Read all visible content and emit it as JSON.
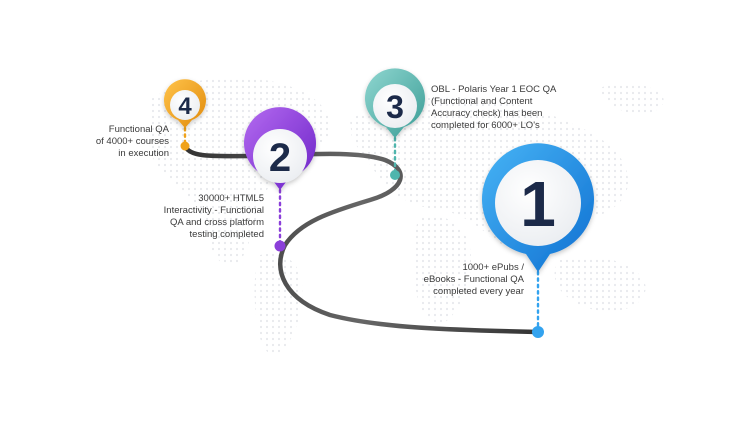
{
  "milestones": [
    {
      "number": "1",
      "color": "#1e8fe6",
      "lines": [
        "1000+ ePubs /",
        "eBooks - Functional QA",
        "completed every year"
      ]
    },
    {
      "number": "2",
      "color": "#8b3fd9",
      "lines": [
        "30000+ HTML5",
        "Interactivity - Functional",
        "QA and cross platform",
        "testing completed"
      ]
    },
    {
      "number": "3",
      "color": "#4fb5ad",
      "lines": [
        "OBL - Polaris Year 1 EOC QA",
        "(Functional and Content",
        "Accuracy check) has been",
        "completed for 6000+ LO's"
      ]
    },
    {
      "number": "4",
      "color": "#f0a21a",
      "lines": [
        "Functional QA",
        "of 4000+ courses",
        "in execution"
      ]
    }
  ],
  "colors": {
    "road": "#4a4a4a",
    "number_text": "#1b2a4a",
    "map_dots": "#e6e8ec"
  },
  "icons": {
    "pin": "map-pin-icon"
  }
}
